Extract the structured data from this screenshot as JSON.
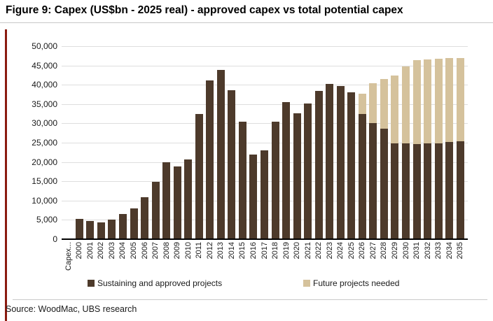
{
  "figure": {
    "title": "Figure 9: Capex (US$bn - 2025 real) - approved capex vs total potential capex",
    "source": "Source: WoodMac, UBS research"
  },
  "legend": {
    "items": [
      {
        "label": "Sustaining and approved projects",
        "color": "#4d3a2b"
      },
      {
        "label": "Future projects needed",
        "color": "#d5c29c"
      }
    ]
  },
  "colors": {
    "accent_rule": "#8a1b10",
    "grid": "#dedede",
    "axis": "#000000",
    "title_underline": "#c9c9c9",
    "source_separator": "#c9c9c9"
  },
  "chart_data": {
    "type": "bar",
    "stacked": true,
    "title": "Capex (US$bn - 2025 real) - approved capex vs total potential capex",
    "xlabel": "",
    "ylabel": "",
    "ylim": [
      0,
      50000
    ],
    "ytick_step": 5000,
    "grid": true,
    "legend_position": "bottom",
    "categories": [
      "Capex...",
      "2000",
      "2001",
      "2002",
      "2003",
      "2004",
      "2005",
      "2006",
      "2007",
      "2008",
      "2009",
      "2010",
      "2011",
      "2012",
      "2013",
      "2014",
      "2015",
      "2016",
      "2017",
      "2018",
      "2019",
      "2020",
      "2021",
      "2022",
      "2023",
      "2024",
      "2025",
      "2026",
      "2027",
      "2028",
      "2029",
      "2030",
      "2031",
      "2032",
      "2033",
      "2034",
      "2035"
    ],
    "series": [
      {
        "name": "Sustaining and approved projects",
        "color": "#4d3a2b",
        "values": [
          0,
          5200,
          4700,
          4300,
          5000,
          6500,
          8000,
          10800,
          14800,
          19900,
          18800,
          20600,
          32400,
          41100,
          43800,
          38600,
          30400,
          22000,
          23100,
          30500,
          35500,
          32600,
          35100,
          38400,
          40200,
          39700,
          38100,
          32400,
          30000,
          28700,
          24800,
          24800,
          24700,
          24800,
          24900,
          25100,
          25300
        ]
      },
      {
        "name": "Future projects needed",
        "color": "#d5c29c",
        "values": [
          0,
          0,
          0,
          0,
          0,
          0,
          0,
          0,
          0,
          0,
          0,
          0,
          0,
          0,
          0,
          0,
          0,
          0,
          0,
          0,
          0,
          0,
          0,
          0,
          0,
          0,
          0,
          5300,
          10400,
          12700,
          17600,
          20000,
          21600,
          21700,
          21800,
          21900,
          21700
        ]
      }
    ]
  }
}
